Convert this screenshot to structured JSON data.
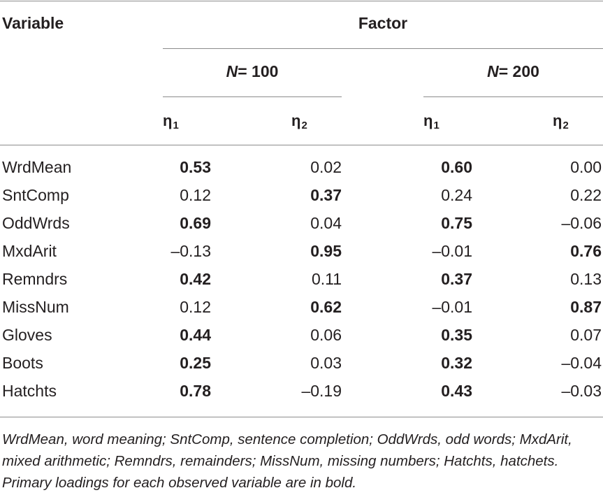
{
  "header": {
    "variable_label": "Variable",
    "factor_label": "Factor",
    "groups": [
      {
        "n_symbol": "N",
        "n_equals": "= 100"
      },
      {
        "n_symbol": "N",
        "n_equals": "= 200"
      }
    ],
    "columns": [
      {
        "symbol": "η",
        "sub": "1"
      },
      {
        "symbol": "η",
        "sub": "2"
      },
      {
        "symbol": "η",
        "sub": "1"
      },
      {
        "symbol": "η",
        "sub": "2"
      }
    ]
  },
  "rows": [
    {
      "variable": "WrdMean",
      "n100_eta1": "0.53",
      "n100_eta2": "0.02",
      "n200_eta1": "0.60",
      "n200_eta2": "0.00"
    },
    {
      "variable": "SntComp",
      "n100_eta1": "0.12",
      "n100_eta2": "0.37",
      "n200_eta1": "0.24",
      "n200_eta2": "0.22"
    },
    {
      "variable": "OddWrds",
      "n100_eta1": "0.69",
      "n100_eta2": "0.04",
      "n200_eta1": "0.75",
      "n200_eta2": "–0.06"
    },
    {
      "variable": "MxdArit",
      "n100_eta1": "–0.13",
      "n100_eta2": "0.95",
      "n200_eta1": "–0.01",
      "n200_eta2": "0.76"
    },
    {
      "variable": "Remndrs",
      "n100_eta1": "0.42",
      "n100_eta2": "0.11",
      "n200_eta1": "0.37",
      "n200_eta2": "0.13"
    },
    {
      "variable": "MissNum",
      "n100_eta1": "0.12",
      "n100_eta2": "0.62",
      "n200_eta1": "–0.01",
      "n200_eta2": "0.87"
    },
    {
      "variable": "Gloves",
      "n100_eta1": "0.44",
      "n100_eta2": "0.06",
      "n200_eta1": "0.35",
      "n200_eta2": "0.07"
    },
    {
      "variable": "Boots",
      "n100_eta1": "0.25",
      "n100_eta2": "0.03",
      "n200_eta1": "0.32",
      "n200_eta2": "–0.04"
    },
    {
      "variable": "Hatchts",
      "n100_eta1": "0.78",
      "n100_eta2": "–0.19",
      "n200_eta1": "0.43",
      "n200_eta2": "–0.03"
    }
  ],
  "footnote": "WrdMean, word meaning; SntComp, sentence completion; OddWrds, odd words; MxdArit, mixed arithmetic; Remndrs, remainders; MissNum, missing numbers; Hatchts, hatchets. Primary loadings for each observed variable are in bold."
}
